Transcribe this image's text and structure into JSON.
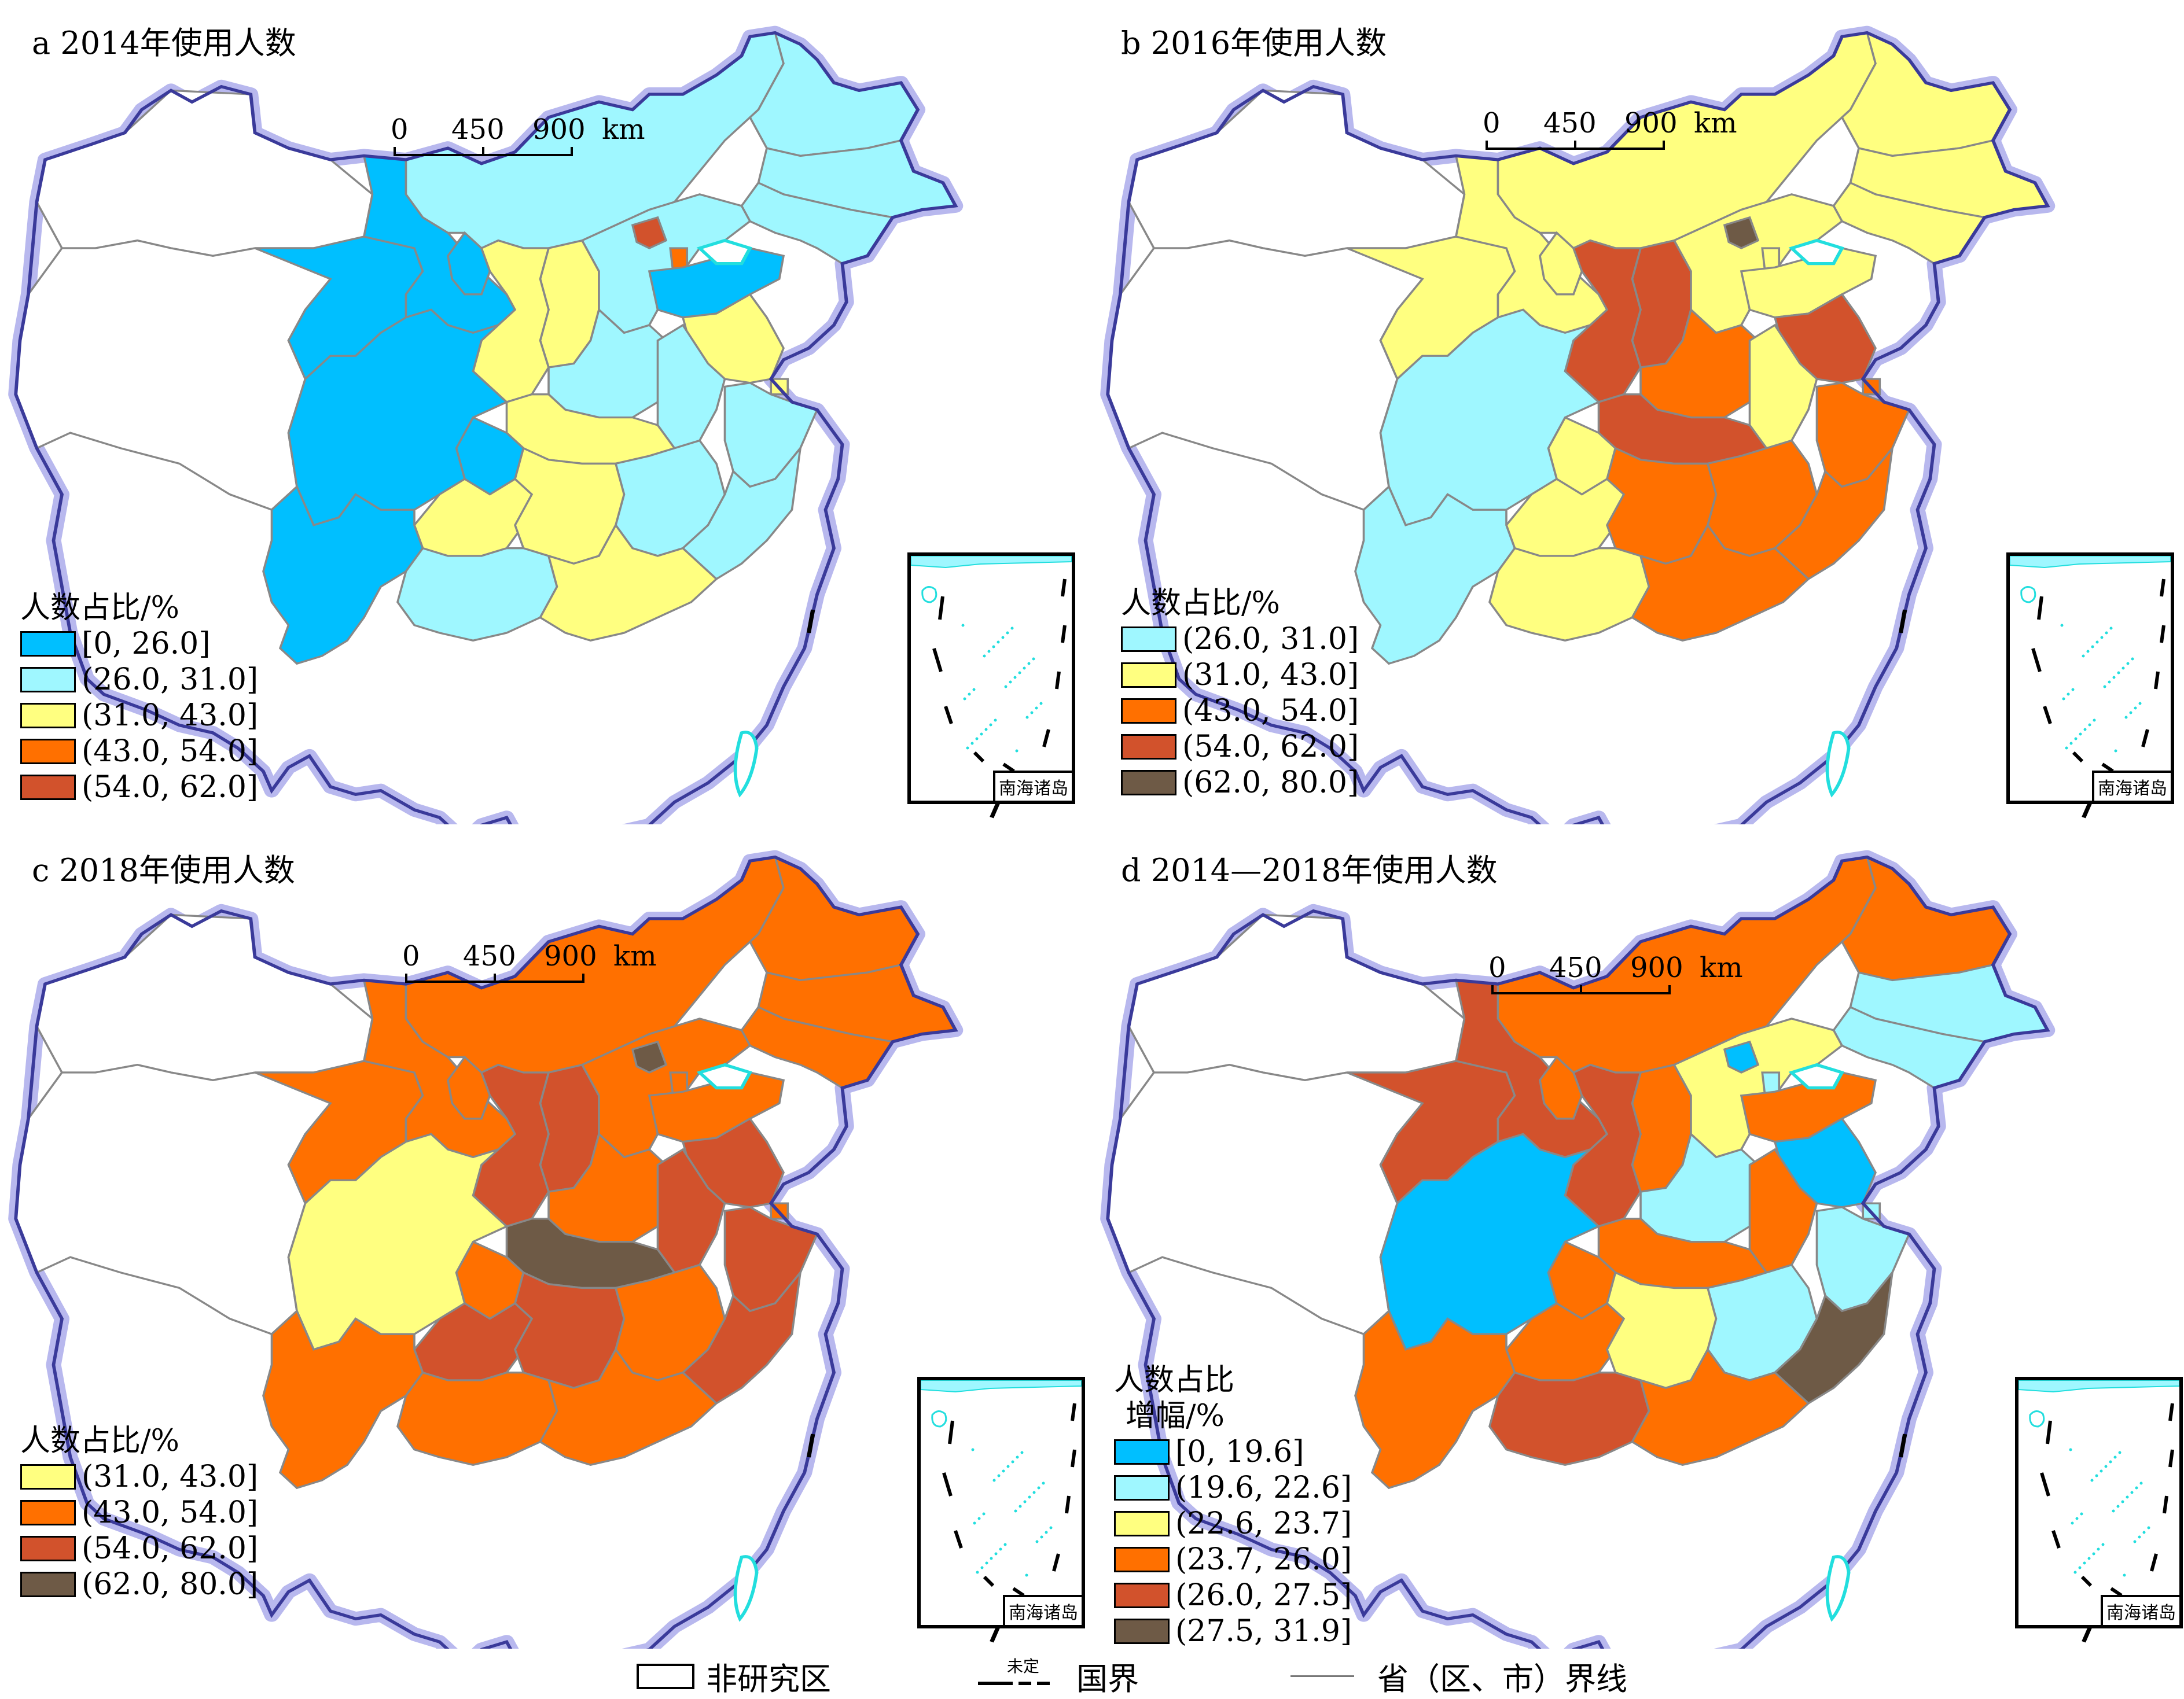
{
  "panels": [
    {
      "id": "a",
      "title": "a 2014年使用人数",
      "legend_title": "人数占比/%",
      "legend": [
        {
          "label": "[0, 26.0]",
          "color": "#00bfff"
        },
        {
          "label": "(26.0, 31.0]",
          "color": "#9ff7ff"
        },
        {
          "label": "(31.0, 43.0]",
          "color": "#ffff80"
        },
        {
          "label": "(43.0, 54.0]",
          "color": "#ff7000"
        },
        {
          "label": "(54.0, 62.0]",
          "color": "#d2522c"
        }
      ]
    },
    {
      "id": "b",
      "title": "b 2016年使用人数",
      "legend_title": "人数占比/%",
      "legend": [
        {
          "label": "(26.0, 31.0]",
          "color": "#9ff7ff"
        },
        {
          "label": "(31.0, 43.0]",
          "color": "#ffff80"
        },
        {
          "label": "(43.0, 54.0]",
          "color": "#ff7000"
        },
        {
          "label": "(54.0, 62.0]",
          "color": "#d2522c"
        },
        {
          "label": "(62.0, 80.0]",
          "color": "#6e5a46"
        }
      ]
    },
    {
      "id": "c",
      "title": "c 2018年使用人数",
      "legend_title": "人数占比/%",
      "legend": [
        {
          "label": "(31.0, 43.0]",
          "color": "#ffff80"
        },
        {
          "label": "(43.0, 54.0]",
          "color": "#ff7000"
        },
        {
          "label": "(54.0, 62.0]",
          "color": "#d2522c"
        },
        {
          "label": "(62.0, 80.0]",
          "color": "#6e5a46"
        }
      ]
    },
    {
      "id": "d",
      "title": "d 2014—2018年使用人数",
      "legend_title": "人数占比",
      "legend_title2": "增幅/%",
      "legend": [
        {
          "label": "[0, 19.6]",
          "color": "#00bfff"
        },
        {
          "label": "(19.6, 22.6]",
          "color": "#9ff7ff"
        },
        {
          "label": "(22.6, 23.7]",
          "color": "#ffff80"
        },
        {
          "label": "(23.7, 26.0]",
          "color": "#ff7000"
        },
        {
          "label": "(26.0, 27.5]",
          "color": "#d2522c"
        },
        {
          "label": "(27.5, 31.9]",
          "color": "#6e5a46"
        }
      ]
    }
  ],
  "scale": {
    "t0": "0",
    "t1": "450",
    "t2": "900",
    "unit": "km"
  },
  "inset_label": "南海诸岛",
  "bottom_legend": {
    "non_study": "非研究区",
    "undetermined": "未定",
    "national_border": "国界",
    "provincial_border": "省（区、市）界线"
  },
  "colors": {
    "border_glow": "#b8b8ee",
    "border_line": "#3a3a9a",
    "coast": "#22dede"
  }
}
